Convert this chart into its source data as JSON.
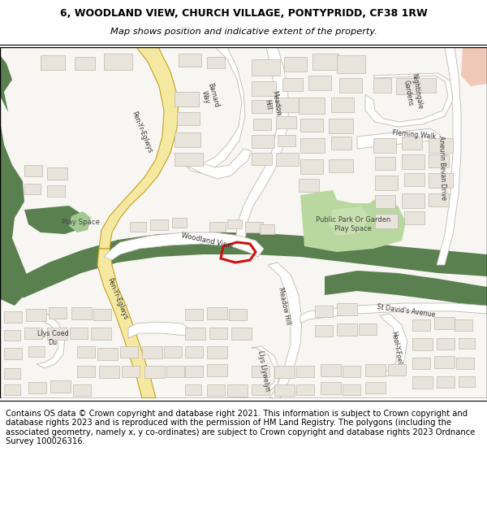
{
  "title_line1": "6, WOODLAND VIEW, CHURCH VILLAGE, PONTYPRIDD, CF38 1RW",
  "title_line2": "Map shows position and indicative extent of the property.",
  "footer_text": "Contains OS data © Crown copyright and database right 2021. This information is subject to Crown copyright and database rights 2023 and is reproduced with the permission of HM Land Registry. The polygons (including the associated geometry, namely x, y co-ordinates) are subject to Crown copyright and database rights 2023 Ordnance Survey 100026316.",
  "title_fontsize": 9.0,
  "subtitle_fontsize": 8.2,
  "footer_fontsize": 7.2,
  "fig_width": 6.0,
  "fig_height": 6.25,
  "bg_white": "#ffffff",
  "map_bg": "#f8f6f2",
  "yellow_road_fill": "#f5e8a0",
  "yellow_road_edge": "#c8a020",
  "green_dark": "#5a8050",
  "green_park": "#b8d8a0",
  "green_playspace": "#c8e0b0",
  "building_fill": "#e8e4dc",
  "building_edge": "#c0b8ac",
  "road_white": "#ffffff",
  "road_edge": "#c0b8b0",
  "red_outline": "#cc1111",
  "header_border": "#000000",
  "map_border": "#000000"
}
